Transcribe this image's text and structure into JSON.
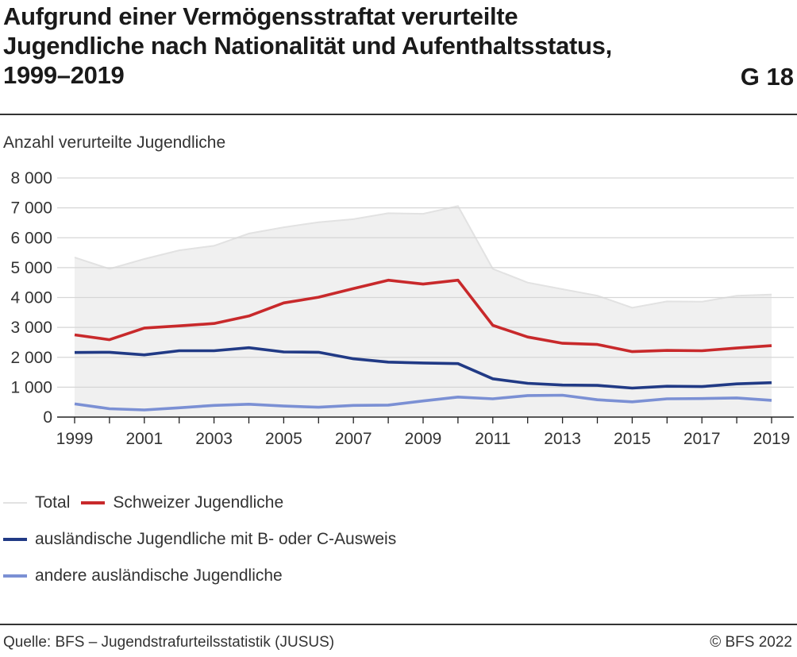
{
  "header": {
    "title_lines": [
      "Aufgrund einer Vermögensstraftat verurteilte",
      "Jugendliche nach Nationalität und Aufenthaltsstatus,",
      "1999–2019"
    ],
    "graphic_number": "G 18"
  },
  "footer": {
    "source": "Quelle: BFS – Jugendstrafurteilsstatistik (JUSUS)",
    "copyright": "© BFS 2022"
  },
  "chart_data": {
    "type": "line",
    "ylabel": "Anzahl verurteilte Jugendliche",
    "xlabel": "",
    "ylim": [
      0,
      8000
    ],
    "yticks": [
      0,
      1000,
      2000,
      3000,
      4000,
      5000,
      6000,
      7000,
      8000
    ],
    "ytick_labels": [
      "0",
      "1 000",
      "2 000",
      "3 000",
      "4 000",
      "5 000",
      "6 000",
      "7 000",
      "8 000"
    ],
    "xticks": [
      1999,
      2001,
      2003,
      2005,
      2007,
      2009,
      2011,
      2013,
      2015,
      2017,
      2019
    ],
    "xtick_labels": [
      "1999",
      "2001",
      "2003",
      "2005",
      "2007",
      "2009",
      "2011",
      "2013",
      "2015",
      "2017",
      "2019"
    ],
    "grid": "horizontal",
    "legend_position": "bottom",
    "x": [
      1999,
      2000,
      2001,
      2002,
      2003,
      2004,
      2005,
      2006,
      2007,
      2008,
      2009,
      2010,
      2011,
      2012,
      2013,
      2014,
      2015,
      2016,
      2017,
      2018,
      2019
    ],
    "series": [
      {
        "name": "Total",
        "style": "area",
        "color": "#f0f0f0",
        "stroke": "#e2e2e2",
        "values": [
          5340,
          4960,
          5290,
          5580,
          5730,
          6140,
          6350,
          6520,
          6620,
          6820,
          6800,
          7060,
          4960,
          4500,
          4280,
          4060,
          3660,
          3870,
          3860,
          4060,
          4100
        ]
      },
      {
        "name": "Schweizer Jugendliche",
        "style": "line",
        "color": "#c8292b",
        "values": [
          2750,
          2590,
          2980,
          3050,
          3130,
          3380,
          3820,
          4010,
          4300,
          4580,
          4450,
          4580,
          3070,
          2680,
          2470,
          2430,
          2190,
          2230,
          2220,
          2310,
          2390
        ]
      },
      {
        "name": "ausländische Jugendliche mit B- oder C-Ausweis",
        "style": "line",
        "color": "#213a85",
        "values": [
          2160,
          2170,
          2080,
          2220,
          2220,
          2320,
          2180,
          2170,
          1950,
          1840,
          1810,
          1790,
          1280,
          1130,
          1070,
          1060,
          970,
          1030,
          1020,
          1110,
          1150
        ]
      },
      {
        "name": "andere ausländische Jugendliche",
        "style": "line",
        "color": "#7b90d4",
        "values": [
          440,
          280,
          240,
          310,
          390,
          430,
          370,
          330,
          390,
          400,
          540,
          670,
          610,
          720,
          730,
          580,
          510,
          610,
          620,
          640,
          560
        ]
      }
    ]
  }
}
